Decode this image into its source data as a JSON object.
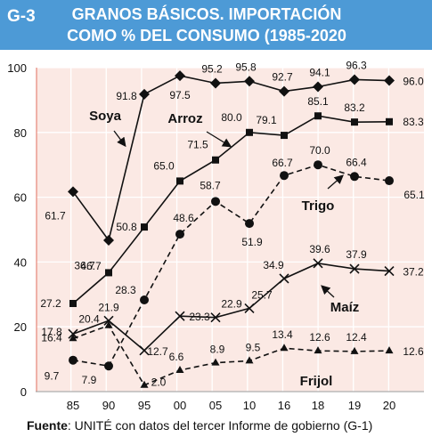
{
  "figure_id": "G-3",
  "title_line1": "GRANOS BÁSICOS. IMPORTACIÓN",
  "title_line2": "COMO % DEL CONSUMO (1985-2020",
  "source_label": "Fuente",
  "source_text": ": UNITÉ con datos del tercer Informe de gobierno (G-1)",
  "colors": {
    "header": "#4d9ad6",
    "plot_bg": "#fbe9e4",
    "grid": "#ffffff",
    "series": "#111111",
    "accent_line": "#e06f5f"
  },
  "chart_data": {
    "type": "line",
    "categories": [
      "85",
      "90",
      "95",
      "00",
      "05",
      "10",
      "16",
      "18",
      "19",
      "20"
    ],
    "ylim": [
      0,
      100
    ],
    "yticks": [
      0,
      20,
      40,
      60,
      80,
      100
    ],
    "grid": true,
    "series": [
      {
        "name": "Soya",
        "marker": "diamond",
        "dash": false,
        "values": [
          61.7,
          46.7,
          91.8,
          97.5,
          95.2,
          95.8,
          92.7,
          94.1,
          96.3,
          96.0
        ],
        "labels": [
          "61.7",
          "46.7",
          "91.8",
          "97.5",
          "95.2",
          "95.8",
          "92.7",
          "94.1",
          "96.3",
          "96.0"
        ]
      },
      {
        "name": "Arroz",
        "marker": "square",
        "dash": false,
        "values": [
          27.2,
          36.7,
          50.8,
          65.0,
          71.5,
          80.0,
          79.1,
          85.1,
          83.2,
          83.3
        ],
        "labels": [
          "27.2",
          "36.7",
          "50.8",
          "65.0",
          "71.5",
          "80.0",
          "79.1",
          "85.1",
          "83.2",
          "83.3"
        ]
      },
      {
        "name": "Trigo",
        "marker": "circle",
        "dash": true,
        "values": [
          9.7,
          7.9,
          28.3,
          48.6,
          58.7,
          51.9,
          66.7,
          70.0,
          66.4,
          65.1
        ],
        "labels": [
          "9.7",
          "7.9",
          "28.3",
          "48.6",
          "58.7",
          "51.9",
          "66.7",
          "70.0",
          "66.4",
          "65.1"
        ]
      },
      {
        "name": "Maíz",
        "marker": "x",
        "dash": false,
        "values": [
          17.8,
          21.9,
          12.7,
          23.3,
          22.9,
          25.7,
          34.9,
          39.6,
          37.9,
          37.2
        ],
        "labels": [
          "17.8",
          "21.9",
          "12.7",
          "23.3",
          "22.9",
          "25.7",
          "34.9",
          "39.6",
          "37.9",
          "37.2"
        ]
      },
      {
        "name": "Frijol",
        "marker": "triangle",
        "dash": true,
        "values": [
          16.4,
          20.4,
          2.0,
          6.6,
          8.9,
          9.5,
          13.4,
          12.6,
          12.4,
          12.6
        ],
        "labels": [
          "16.4",
          "20.4",
          "2.0",
          "6.6",
          "8.9",
          "9.5",
          "13.4",
          "12.6",
          "12.4",
          "12.6"
        ]
      }
    ]
  }
}
